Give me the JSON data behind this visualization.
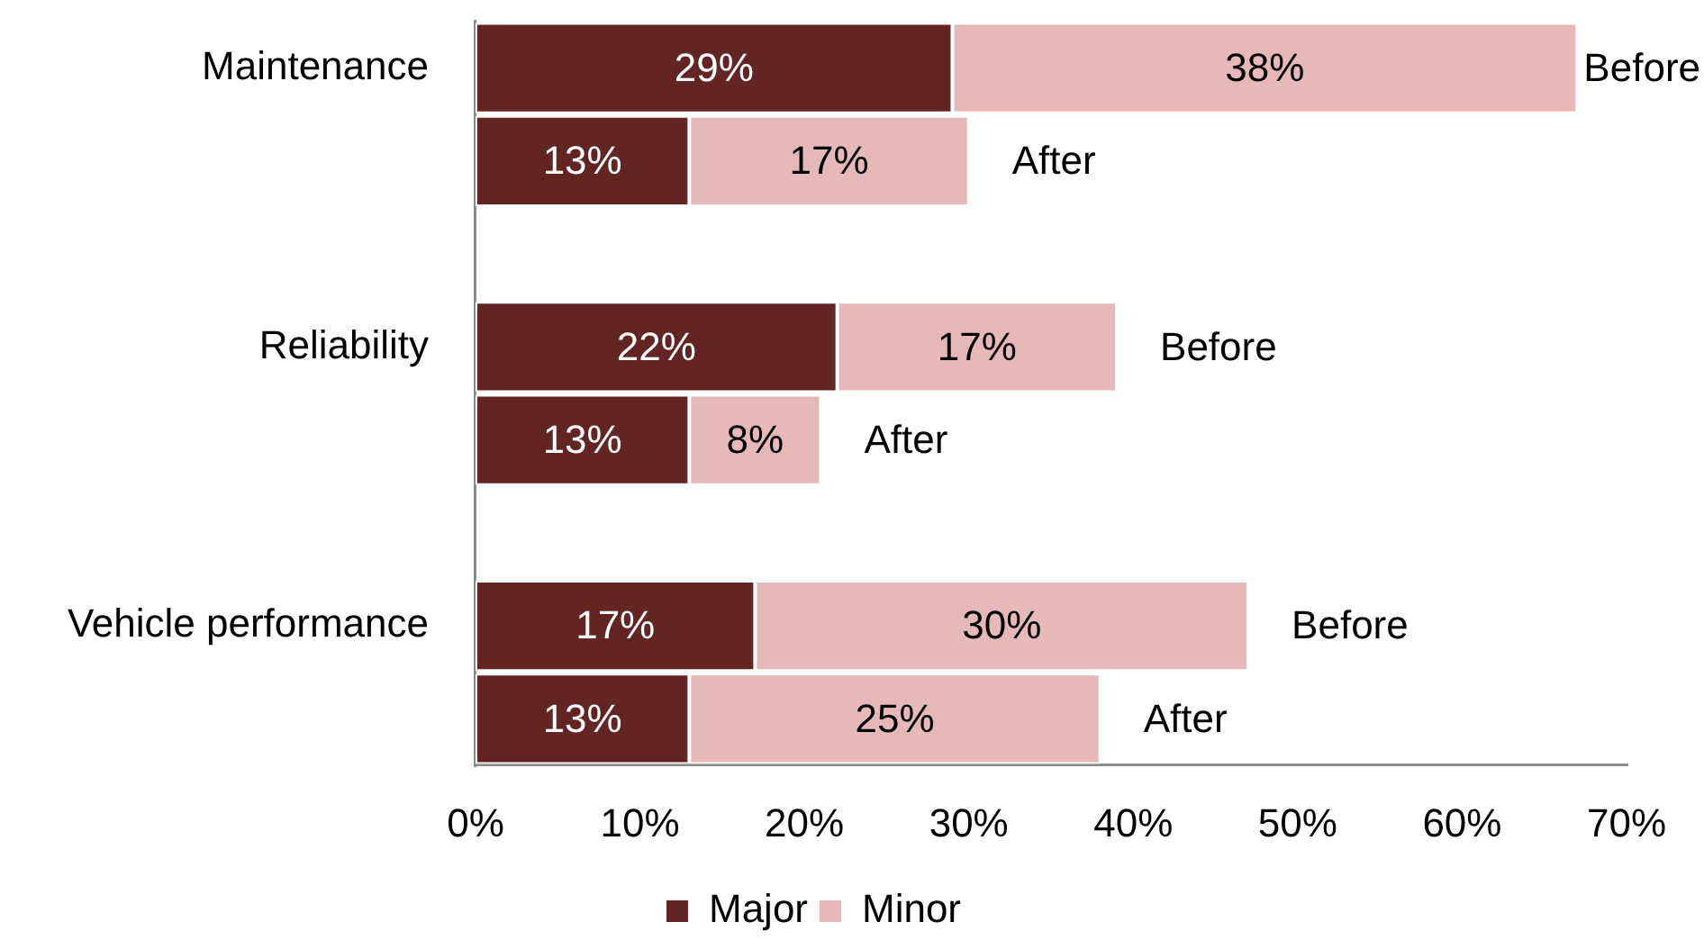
{
  "chart_data": {
    "type": "bar",
    "orientation": "horizontal",
    "stacked": true,
    "categories": [
      "Maintenance",
      null,
      "Reliability",
      null,
      "Vehicle performance",
      null
    ],
    "series": [
      {
        "name": "Major",
        "color": "#632523",
        "values": [
          29,
          13,
          22,
          13,
          17,
          13
        ],
        "value_labels": [
          "29%",
          "13%",
          "22%",
          "13%",
          "17%",
          "13%"
        ]
      },
      {
        "name": "Minor",
        "color": "#e6b9b8",
        "values": [
          38,
          17,
          17,
          8,
          30,
          25
        ],
        "value_labels": [
          "38%",
          "17%",
          "17%",
          "8%",
          "30%",
          "25%"
        ]
      }
    ],
    "xlim": [
      0,
      70
    ],
    "xticks": [
      {
        "value": 0,
        "label": "0%"
      },
      {
        "value": 10,
        "label": "10%"
      },
      {
        "value": 20,
        "label": "20%"
      },
      {
        "value": 30,
        "label": "30%"
      },
      {
        "value": 40,
        "label": "40%"
      },
      {
        "value": 50,
        "label": "50%"
      },
      {
        "value": 60,
        "label": "60%"
      },
      {
        "value": 70,
        "label": "70%"
      }
    ],
    "legend": "bottom",
    "annotations": [
      "Before",
      "After",
      "Before",
      "After",
      "Before",
      "After"
    ]
  }
}
